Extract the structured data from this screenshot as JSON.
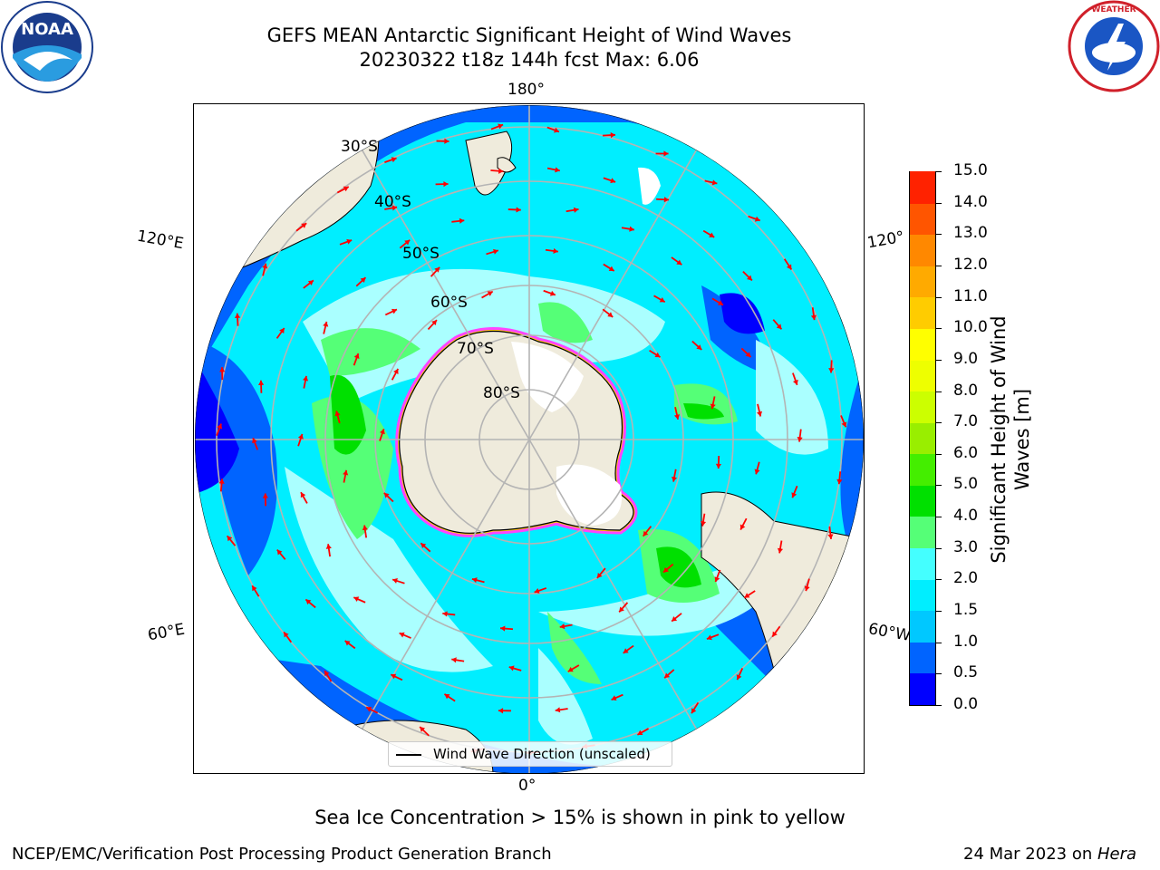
{
  "title": {
    "line1": "GEFS MEAN Antarctic Significant Height of Wind Waves",
    "line2": "20230322 t18z 144h fcst   Max: 6.06"
  },
  "logos": {
    "left": {
      "text": "NOAA",
      "ring_text": "NATIONAL OCEANIC AND ATMOSPHERIC ADMINISTRATION · U.S. DEPARTMENT OF COMMERCE"
    },
    "right": {
      "ring_text": "NATIONAL WEATHER SERVICE"
    }
  },
  "map": {
    "longitude_labels": {
      "top": "180°",
      "bottom": "0°",
      "left_upper": "120°E",
      "left_lower": "60°E",
      "right_upper": "120°",
      "right_lower": "60°W"
    },
    "latitude_labels": [
      "30°S",
      "40°S",
      "50°S",
      "60°S",
      "70°S",
      "80°S"
    ],
    "colors": {
      "land": "#efebdc",
      "ice": "#ffffff",
      "ice_edge_pink": "#ff44ff",
      "arrow": "#ff0000",
      "grid": "#b4b4b4"
    }
  },
  "legend": {
    "label": "Wind Wave Direction (unscaled)"
  },
  "colorbar": {
    "title_line1": "Significant Height of Wind",
    "title_line2": "Waves [m]",
    "tick_labels": [
      "0.0",
      "0.5",
      "1.0",
      "1.5",
      "2.0",
      "3.0",
      "4.0",
      "5.0",
      "6.0",
      "7.0",
      "8.0",
      "9.0",
      "10.0",
      "11.0",
      "12.0",
      "13.0",
      "14.0",
      "15.0"
    ],
    "colors": [
      "#0000ff",
      "#0064ff",
      "#00c8ff",
      "#00eeff",
      "#44ffff",
      "#aaffff",
      "#55ff77",
      "#00e000",
      "#44ee00",
      "#99ee00",
      "#ccff00",
      "#eeff00",
      "#ffff00",
      "#ffcc00",
      "#ffaa00",
      "#ff8800",
      "#ff5500",
      "#ff2200",
      "#ff0000"
    ]
  },
  "caption": "Sea Ice Concentration > 15% is shown in pink to yellow",
  "footer": {
    "left": "NCEP/EMC/Verification Post Processing Product Generation Branch",
    "right_prefix": "24 Mar 2023 on ",
    "right_host": "Hera"
  }
}
